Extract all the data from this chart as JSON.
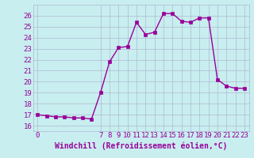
{
  "title": "",
  "xlabel": "Windchill (Refroidissement éolien,°C)",
  "ylabel": "",
  "background_color": "#c8eef0",
  "line_color": "#990099",
  "marker_color": "#990099",
  "grid_color": "#b0b8d0",
  "x_hours": [
    0,
    1,
    2,
    3,
    4,
    5,
    6,
    7,
    8,
    9,
    10,
    11,
    12,
    13,
    14,
    15,
    16,
    17,
    18,
    19,
    20,
    21,
    22,
    23
  ],
  "y_values": [
    17.0,
    16.9,
    16.8,
    16.8,
    16.7,
    16.7,
    16.6,
    19.0,
    21.8,
    23.1,
    23.2,
    25.4,
    24.3,
    24.5,
    26.2,
    26.2,
    25.5,
    25.4,
    25.8,
    25.8,
    20.2,
    19.6,
    19.4,
    19.4
  ],
  "ylim": [
    15.5,
    27.0
  ],
  "yticks": [
    16,
    17,
    18,
    19,
    20,
    21,
    22,
    23,
    24,
    25,
    26
  ],
  "xlim": [
    -0.5,
    23.5
  ],
  "xticks": [
    0,
    7,
    8,
    9,
    10,
    11,
    12,
    13,
    14,
    15,
    16,
    17,
    18,
    19,
    20,
    21,
    22,
    23
  ],
  "xlabel_fontsize": 7.0,
  "tick_fontsize": 6.5,
  "marker_size": 2.5,
  "line_width": 1.0
}
